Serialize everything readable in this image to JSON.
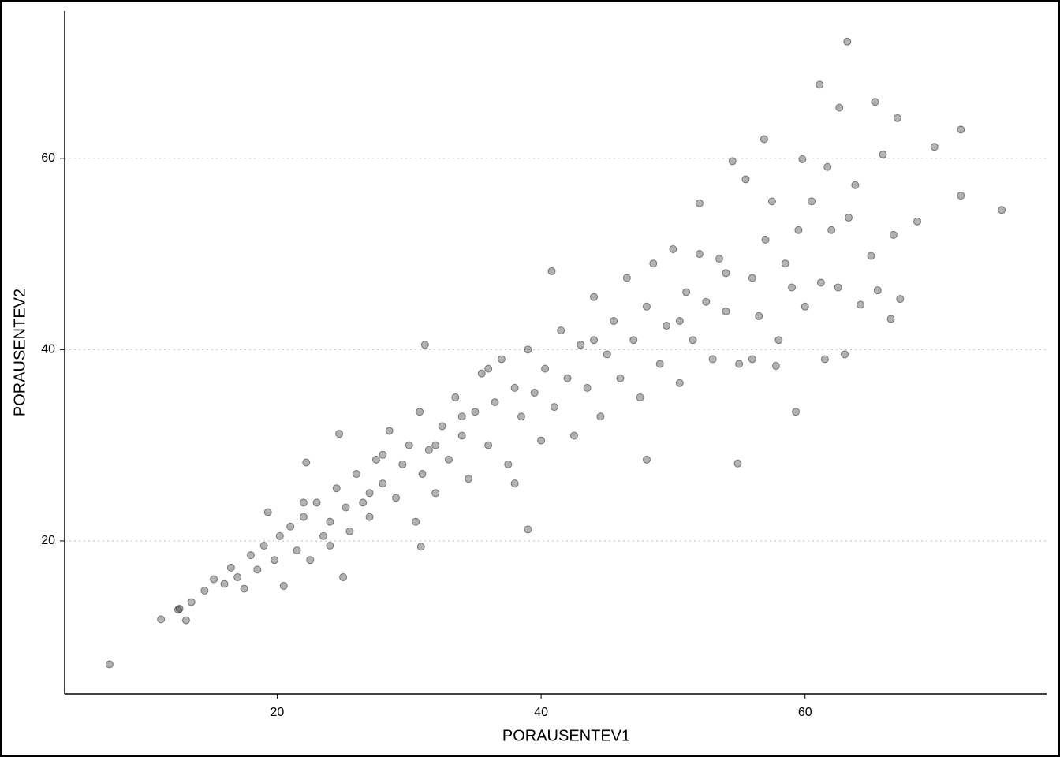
{
  "chart_data": {
    "type": "scatter",
    "x_label": "PORAUSENTEV1",
    "y_label": "PORAUSENTEV2",
    "xlim": [
      3.9,
      78.3
    ],
    "ylim": [
      4.0,
      75.4
    ],
    "xticks": [
      20,
      40,
      60
    ],
    "yticks": [
      20,
      40,
      60
    ],
    "grid": true,
    "color": "#000000",
    "x": [
      7.3,
      63.2,
      61.1,
      62.6,
      65.3,
      67.0,
      71.8,
      69.8,
      56.9,
      65.9,
      59.8,
      61.7,
      71.8,
      74.9,
      68.5,
      54.9,
      39.0,
      30.9,
      11.2,
      13.1,
      12.6,
      48.0,
      12.5,
      13.5,
      14.5,
      15.2,
      16.0,
      16.5,
      17.0,
      17.5,
      18.0,
      18.5,
      19.0,
      19.3,
      19.8,
      20.2,
      20.5,
      21.0,
      21.5,
      22.0,
      22.2,
      22.5,
      23.0,
      23.5,
      24.0,
      24.5,
      24.7,
      25.0,
      25.2,
      25.5,
      26.0,
      26.5,
      27.0,
      27.5,
      28.0,
      28.5,
      29.0,
      29.5,
      30.0,
      30.5,
      30.8,
      31.0,
      31.2,
      31.5,
      32.0,
      32.5,
      33.0,
      33.5,
      34.0,
      34.5,
      35.0,
      35.5,
      36.0,
      36.5,
      37.0,
      37.5,
      38.0,
      38.5,
      39.0,
      39.5,
      40.0,
      40.3,
      40.8,
      41.0,
      41.5,
      42.0,
      42.5,
      43.0,
      43.5,
      44.0,
      44.5,
      45.0,
      45.5,
      46.0,
      46.5,
      47.0,
      47.5,
      48.0,
      48.5,
      49.0,
      49.5,
      50.0,
      50.5,
      51.0,
      51.5,
      52.0,
      52.5,
      53.0,
      53.5,
      54.0,
      54.5,
      55.0,
      55.5,
      56.0,
      56.5,
      57.0,
      57.5,
      58.0,
      58.5,
      59.0,
      59.3,
      59.5,
      60.0,
      60.5,
      61.2,
      61.5,
      62.0,
      62.5,
      63.0,
      63.3,
      63.8,
      64.2,
      65.0,
      65.5,
      66.5,
      66.7,
      67.2,
      56.0,
      57.8,
      54.0,
      52.0,
      50.5,
      44.0,
      38.0,
      36.0,
      34.0,
      32.0,
      28.0,
      27.0,
      24.0,
      22.0
    ],
    "y": [
      7.1,
      72.2,
      67.7,
      65.3,
      65.9,
      64.2,
      63.0,
      61.2,
      62.0,
      60.4,
      59.9,
      59.1,
      56.1,
      54.6,
      53.4,
      28.1,
      21.2,
      19.4,
      11.8,
      11.7,
      12.9,
      28.5,
      12.8,
      13.6,
      14.8,
      16.0,
      15.5,
      17.2,
      16.2,
      15.0,
      18.5,
      17.0,
      19.5,
      23.0,
      18.0,
      20.5,
      15.3,
      21.5,
      19.0,
      22.5,
      28.2,
      18.0,
      24.0,
      20.5,
      22.0,
      25.5,
      31.2,
      16.2,
      23.5,
      21.0,
      27.0,
      24.0,
      22.5,
      28.5,
      26.0,
      31.5,
      24.5,
      28.0,
      30.0,
      22.0,
      33.5,
      27.0,
      40.5,
      29.5,
      25.0,
      32.0,
      28.5,
      35.0,
      31.0,
      26.5,
      33.5,
      37.5,
      30.0,
      34.5,
      39.0,
      28.0,
      36.0,
      33.0,
      40.0,
      35.5,
      30.5,
      38.0,
      48.2,
      34.0,
      42.0,
      37.0,
      31.0,
      40.5,
      36.0,
      45.5,
      33.0,
      39.5,
      43.0,
      37.0,
      47.5,
      41.0,
      35.0,
      44.5,
      49.0,
      38.5,
      42.5,
      50.5,
      36.5,
      46.0,
      41.0,
      55.3,
      45.0,
      39.0,
      49.5,
      44.0,
      59.7,
      38.5,
      57.8,
      47.5,
      43.5,
      51.5,
      55.5,
      41.0,
      49.0,
      46.5,
      33.5,
      52.5,
      44.5,
      55.5,
      47.0,
      39.0,
      52.5,
      46.5,
      39.5,
      53.8,
      57.2,
      44.7,
      49.8,
      46.2,
      43.2,
      52.0,
      45.3,
      39.0,
      38.3,
      48.0,
      50.0,
      43.0,
      41.0,
      26.0,
      38.0,
      33.0,
      30.0,
      29.0,
      25.0,
      19.5,
      24.0
    ]
  }
}
